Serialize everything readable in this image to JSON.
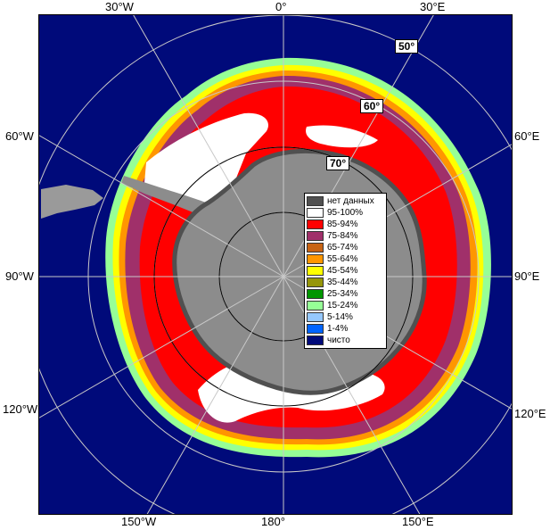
{
  "map": {
    "longitude_labels": {
      "top": [
        "30°W",
        "0°",
        "30°E"
      ],
      "left": [
        "60°W",
        "90°W",
        "120°W"
      ],
      "right": [
        "60°E",
        "90°E",
        "120°E"
      ],
      "bottom": [
        "150°W",
        "180°",
        "150°E"
      ]
    },
    "latitude_labels": [
      "50°",
      "60°",
      "70°"
    ],
    "colors": {
      "ocean": "#000a7a",
      "land": "#8c8c8c",
      "land_edge": "#5a5a5a",
      "no_data": "#505050",
      "ice_95_100": "#ffffff",
      "ice_85_94": "#ff0000",
      "ice_75_84": "#a0306a",
      "ice_65_74": "#c86414",
      "ice_55_64": "#ff9600",
      "ice_45_54": "#ffff00",
      "ice_35_44": "#96960a",
      "ice_25_34": "#009600",
      "ice_15_24": "#96ff96",
      "ice_5_14": "#96c8ff",
      "ice_1_4": "#0064ff",
      "clear": "#000a7a"
    }
  },
  "legend": {
    "items": [
      {
        "label": "нет данных",
        "color": "#505050"
      },
      {
        "label": "95-100%",
        "color": "#ffffff"
      },
      {
        "label": "85-94%",
        "color": "#ff0000"
      },
      {
        "label": "75-84%",
        "color": "#a0306a"
      },
      {
        "label": "65-74%",
        "color": "#c86414"
      },
      {
        "label": "55-64%",
        "color": "#ff9600"
      },
      {
        "label": "45-54%",
        "color": "#ffff00"
      },
      {
        "label": "35-44%",
        "color": "#96960a"
      },
      {
        "label": "25-34%",
        "color": "#009600"
      },
      {
        "label": "15-24%",
        "color": "#96ff96"
      },
      {
        "label": "5-14%",
        "color": "#96c8ff"
      },
      {
        "label": "1-4%",
        "color": "#0064ff"
      },
      {
        "label": "чисто",
        "color": "#000a7a"
      }
    ]
  }
}
